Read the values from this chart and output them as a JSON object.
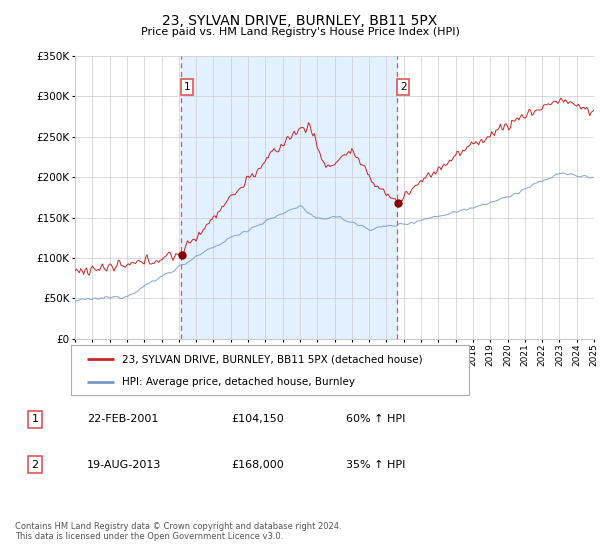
{
  "title": "23, SYLVAN DRIVE, BURNLEY, BB11 5PX",
  "subtitle": "Price paid vs. HM Land Registry's House Price Index (HPI)",
  "legend_line1": "23, SYLVAN DRIVE, BURNLEY, BB11 5PX (detached house)",
  "legend_line2": "HPI: Average price, detached house, Burnley",
  "transaction1_date": "22-FEB-2001",
  "transaction1_price": "£104,150",
  "transaction1_hpi": "60% ↑ HPI",
  "transaction2_date": "19-AUG-2013",
  "transaction2_price": "£168,000",
  "transaction2_hpi": "35% ↑ HPI",
  "footer": "Contains HM Land Registry data © Crown copyright and database right 2024.\nThis data is licensed under the Open Government Licence v3.0.",
  "red_color": "#cc2222",
  "blue_color": "#7799cc",
  "bg_shade_color": "#ddeeff",
  "grid_color": "#cccccc",
  "vline_color": "#dd5555",
  "ylim_max": 350000,
  "ylim_min": 0,
  "year_start": 1995,
  "year_end": 2025,
  "trans1_year": 2001.13,
  "trans2_year": 2013.63,
  "trans1_price": 104150,
  "trans2_price": 168000
}
